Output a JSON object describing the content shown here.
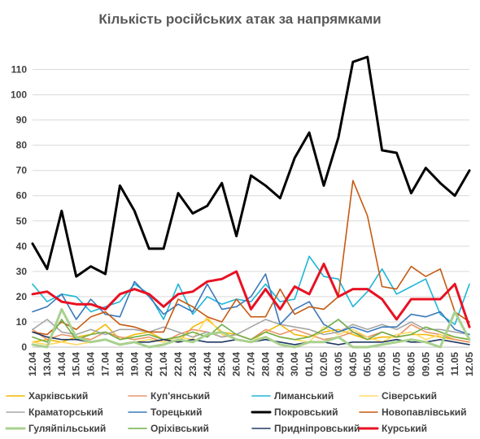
{
  "chart_data": {
    "type": "line",
    "title": "Кількість російських атак за напрямками",
    "xlabel": "",
    "ylabel": "",
    "ylim": [
      0,
      115
    ],
    "yticks": [
      0,
      10,
      20,
      30,
      40,
      50,
      60,
      70,
      80,
      90,
      100,
      110
    ],
    "grid": "horizontal",
    "legend_position": "bottom",
    "x": [
      "12.04",
      "13.04",
      "14.04",
      "15.04",
      "16.04",
      "17.04",
      "18.04",
      "19.04",
      "20.04",
      "21.04",
      "22.04",
      "23.04",
      "24.04",
      "25.04",
      "26.04",
      "27.04",
      "28.04",
      "29.04",
      "30.04",
      "01.05",
      "02.05",
      "03.05",
      "04.05",
      "05.05",
      "06.05",
      "07.05",
      "08.05",
      "09.05",
      "10.05",
      "11.05",
      "12.05"
    ],
    "x_labeled": [
      "12.04",
      "13.04",
      "14.04",
      "15.04",
      "16.04",
      "17.04",
      "18.04",
      "19.04",
      "20.04",
      "21.04",
      "22.04",
      "23.04",
      "24.04",
      "25.04",
      "26.04",
      "27.04",
      "28.04",
      "29.04",
      "30.04",
      "01.05",
      "02.05",
      "03.05",
      "04.05",
      "05.05",
      "06.05",
      "07.05",
      "08.05",
      "09.05",
      "10.05",
      "11.05",
      "12.05"
    ],
    "series": [
      {
        "name": "Харківський",
        "color": "#f2b800",
        "width": 1.6,
        "values": [
          2,
          3,
          2,
          4,
          5,
          9,
          3,
          5,
          6,
          3,
          2,
          8,
          11,
          6,
          5,
          3,
          6,
          9,
          5,
          4,
          6,
          7,
          5,
          3,
          4,
          4,
          5,
          5,
          4,
          3,
          2
        ]
      },
      {
        "name": "Куп'янський",
        "color": "#e8956b",
        "width": 1.6,
        "values": [
          7,
          3,
          5,
          4,
          3,
          6,
          4,
          3,
          4,
          2,
          5,
          7,
          6,
          4,
          5,
          3,
          7,
          5,
          7,
          5,
          3,
          4,
          6,
          4,
          6,
          4,
          9,
          6,
          5,
          3,
          2
        ]
      },
      {
        "name": "Лиманський",
        "color": "#1eb6d9",
        "width": 1.6,
        "values": [
          25,
          18,
          21,
          20,
          14,
          16,
          18,
          25,
          21,
          11,
          25,
          13,
          20,
          17,
          19,
          18,
          25,
          18,
          19,
          36,
          28,
          27,
          16,
          22,
          31,
          21,
          24,
          27,
          13,
          9,
          25
        ]
      },
      {
        "name": "Сіверський",
        "color": "#ffd966",
        "width": 1.6,
        "values": [
          2,
          1,
          2,
          1,
          2,
          3,
          1,
          2,
          3,
          2,
          4,
          3,
          12,
          5,
          3,
          2,
          6,
          4,
          3,
          2,
          8,
          5,
          7,
          4,
          2,
          5,
          6,
          3,
          5,
          4,
          3
        ]
      },
      {
        "name": "Краматорський",
        "color": "#a6a6a6",
        "width": 1.6,
        "values": [
          7,
          11,
          6,
          5,
          7,
          5,
          7,
          7,
          6,
          8,
          6,
          4,
          6,
          4,
          5,
          8,
          11,
          9,
          8,
          7,
          5,
          6,
          9,
          7,
          9,
          7,
          10,
          7,
          7,
          6,
          5
        ]
      },
      {
        "name": "Торецький",
        "color": "#3a78b9",
        "width": 1.6,
        "values": [
          14,
          16,
          21,
          11,
          19,
          13,
          12,
          26,
          20,
          13,
          17,
          14,
          25,
          15,
          16,
          20,
          29,
          9,
          15,
          18,
          9,
          6,
          8,
          6,
          8,
          8,
          13,
          12,
          14,
          7,
          5
        ]
      },
      {
        "name": "Покровський",
        "color": "#000000",
        "width": 3,
        "values": [
          41,
          31,
          54,
          28,
          32,
          29,
          64,
          54,
          39,
          39,
          61,
          53,
          56,
          65,
          44,
          68,
          64,
          59,
          75,
          85,
          64,
          83,
          113,
          115,
          78,
          77,
          61,
          71,
          65,
          60,
          70
        ]
      },
      {
        "name": "Новопавлівський",
        "color": "#c55a11",
        "width": 1.6,
        "values": [
          6,
          5,
          10,
          7,
          12,
          14,
          9,
          8,
          6,
          6,
          19,
          16,
          12,
          10,
          19,
          12,
          12,
          23,
          13,
          16,
          15,
          20,
          66,
          52,
          24,
          23,
          32,
          28,
          31,
          14,
          10
        ]
      },
      {
        "name": "Гуляйпільський",
        "color": "#a9d18e",
        "width": 3,
        "values": [
          1,
          0,
          15,
          4,
          2,
          3,
          1,
          2,
          0,
          1,
          3,
          2,
          5,
          6,
          3,
          2,
          4,
          1,
          0,
          2,
          2,
          4,
          0,
          0,
          1,
          2,
          3,
          2,
          0,
          14,
          3
        ]
      },
      {
        "name": "Оріхівський",
        "color": "#70ad47",
        "width": 1.6,
        "values": [
          4,
          2,
          11,
          3,
          5,
          6,
          3,
          4,
          5,
          3,
          4,
          6,
          4,
          9,
          5,
          3,
          6,
          4,
          3,
          4,
          7,
          11,
          6,
          3,
          6,
          4,
          5,
          8,
          6,
          4,
          3
        ]
      },
      {
        "name": "Придніпровський",
        "color": "#203864",
        "width": 1.6,
        "values": [
          6,
          4,
          3,
          3,
          2,
          3,
          1,
          2,
          2,
          3,
          2,
          3,
          2,
          2,
          3,
          2,
          3,
          2,
          1,
          2,
          2,
          1,
          2,
          2,
          2,
          3,
          2,
          2,
          3,
          2,
          1
        ]
      },
      {
        "name": "Курський",
        "color": "#e81123",
        "width": 3,
        "values": [
          21,
          22,
          18,
          17,
          17,
          15,
          21,
          23,
          21,
          16,
          21,
          22,
          26,
          27,
          30,
          15,
          23,
          15,
          24,
          21,
          33,
          20,
          23,
          23,
          19,
          11,
          19,
          19,
          19,
          25,
          8
        ]
      }
    ]
  }
}
